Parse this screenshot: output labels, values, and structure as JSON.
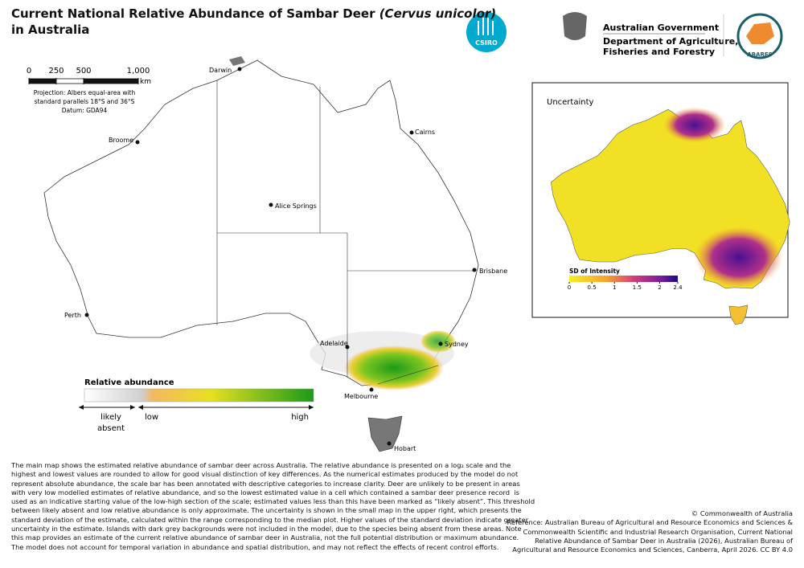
{
  "header": {
    "title_main": "Current National Relative Abundance of Sambar Deer",
    "title_species": "(Cervus unicolor)",
    "title_end": "in Australia",
    "csiro": "CSIRO",
    "gov": "Australian Government",
    "dept_1": "Department of Agriculture,",
    "dept_2": "Fisheries and Forestry",
    "abares": "ABARES"
  },
  "scale_bar": {
    "ticks": [
      0,
      250,
      500,
      {
        "value": 1000,
        "label": "1,000"
      }
    ],
    "unit": "km"
  },
  "projection": [
    "Projection: Albers equal-area with",
    "standard parallels 18°S and 36°S",
    "Datum: GDA94"
  ],
  "cities": [
    "Darwin",
    "Broome",
    "Cairns",
    "Alice Springs",
    "Brisbane",
    "Perth",
    "Adelaide",
    "Sydney",
    "Melbourne",
    "Hobart"
  ],
  "legend": {
    "title": "Relative abundance",
    "absent_1": "likely",
    "absent_2": "absent",
    "low": "low",
    "high": "high"
  },
  "inset": {
    "title": "Uncertainty",
    "colorbar_title": "SD of Intensity",
    "ticks": [
      0,
      0.5,
      1,
      1.5,
      2,
      2.4
    ]
  },
  "body": {
    "lines": [
      "The main map shows the estimated relative abundance of sambar deer across Australia. The relative abundance is presented on a log₂ scale and the",
      "highest and lowest values are rounded to allow for good visual distinction of key differences. As the numerical estimates produced by the model do not",
      "represent absolute abundance, the scale bar has been annotated with descriptive categories to increase clarity. Deer are unlikely to be present in areas",
      "with very low modelled estimates of relative abundance, and so the lowest estimated value in a cell which contained a sambar deer presence record  is",
      "used as an indicative starting value of the low-high section of the scale; estimated values less than this have been marked as “likely absent”. This threshold",
      "between likely absent and low relative abundance is only approximate. The uncertainty is shown in the small map in the upper right, which presents the",
      "standard deviation of the estimate, calculated within the range corresponding to the median plot. Higher values of the standard deviation indicate greater",
      "uncertainty in the estimate. Islands with dark grey backgrounds were not included in the model, due to the species being absent from these areas. Note",
      "this map provides an estimate of the current relative abundance of sambar deer in Australia, not the full potential distribution or maximum abundance.",
      "The model does not account for temporal variation in abundance and spatial distribution, and may not reflect the effects of recent control efforts."
    ]
  },
  "credits": {
    "copyright": "© Commonwealth of Australia",
    "reference": [
      "Reference: Australian Bureau of Agricultural and Resource Economics and Sciences &",
      "Commonwealth Scientific and Industrial Research Organisation, Current National",
      "Relative Abundance of Sambar Deer in Australia (2026), Australian Bureau of",
      "Agricultural and Resource Economics and Sciences, Canberra, April 2026. CC BY 4.0"
    ]
  }
}
